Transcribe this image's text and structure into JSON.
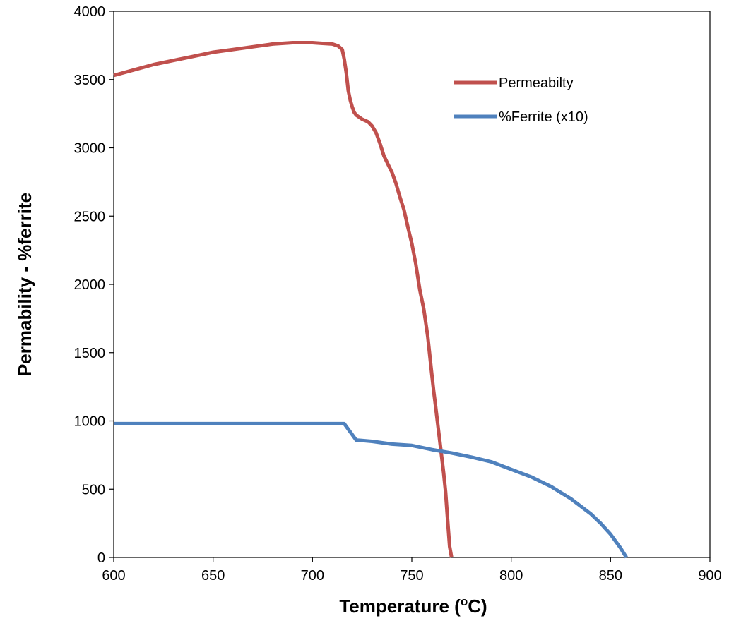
{
  "chart_data": {
    "type": "line",
    "title": "",
    "xlabel": "Temperature (",
    "xlabel_sup": "o",
    "xlabel_end": "C)",
    "ylabel": "Permability  -  %ferrite",
    "xlim": [
      600,
      900
    ],
    "ylim": [
      0,
      4000
    ],
    "xticks": [
      "600",
      "650",
      "700",
      "750",
      "800",
      "850",
      "900"
    ],
    "yticks": [
      "0",
      "500",
      "1000",
      "1500",
      "2000",
      "2500",
      "3000",
      "3500",
      "4000"
    ],
    "grid": false,
    "legend_position": "top-right",
    "series": [
      {
        "name": "Permeabilty",
        "color": "#c0504d",
        "x": [
          600,
          610,
          620,
          630,
          640,
          650,
          660,
          670,
          680,
          690,
          700,
          705,
          710,
          713,
          715,
          716,
          717,
          718,
          719,
          720,
          721,
          722,
          725,
          728,
          730,
          732,
          734,
          736,
          738,
          740,
          742,
          744,
          746,
          748,
          750,
          752,
          754,
          756,
          758,
          760,
          761,
          762,
          763,
          764,
          765,
          766,
          767,
          768,
          769,
          770
        ],
        "y": [
          3530,
          3570,
          3610,
          3640,
          3670,
          3700,
          3720,
          3740,
          3760,
          3770,
          3770,
          3765,
          3760,
          3745,
          3720,
          3650,
          3550,
          3420,
          3350,
          3300,
          3260,
          3240,
          3210,
          3190,
          3160,
          3110,
          3030,
          2940,
          2880,
          2820,
          2740,
          2640,
          2550,
          2420,
          2300,
          2150,
          1960,
          1820,
          1620,
          1350,
          1220,
          1100,
          980,
          860,
          740,
          620,
          480,
          280,
          80,
          0
        ]
      },
      {
        "name": "%Ferrite (x10)",
        "color": "#4f81bd",
        "x": [
          600,
          610,
          620,
          630,
          640,
          650,
          660,
          670,
          680,
          690,
          700,
          710,
          716,
          722,
          730,
          740,
          750,
          760,
          770,
          780,
          790,
          800,
          810,
          820,
          830,
          840,
          845,
          850,
          855,
          858
        ],
        "y": [
          980,
          980,
          980,
          980,
          980,
          980,
          980,
          980,
          980,
          980,
          980,
          980,
          980,
          860,
          850,
          830,
          820,
          790,
          765,
          735,
          700,
          645,
          590,
          520,
          430,
          320,
          250,
          170,
          70,
          0
        ]
      }
    ]
  }
}
